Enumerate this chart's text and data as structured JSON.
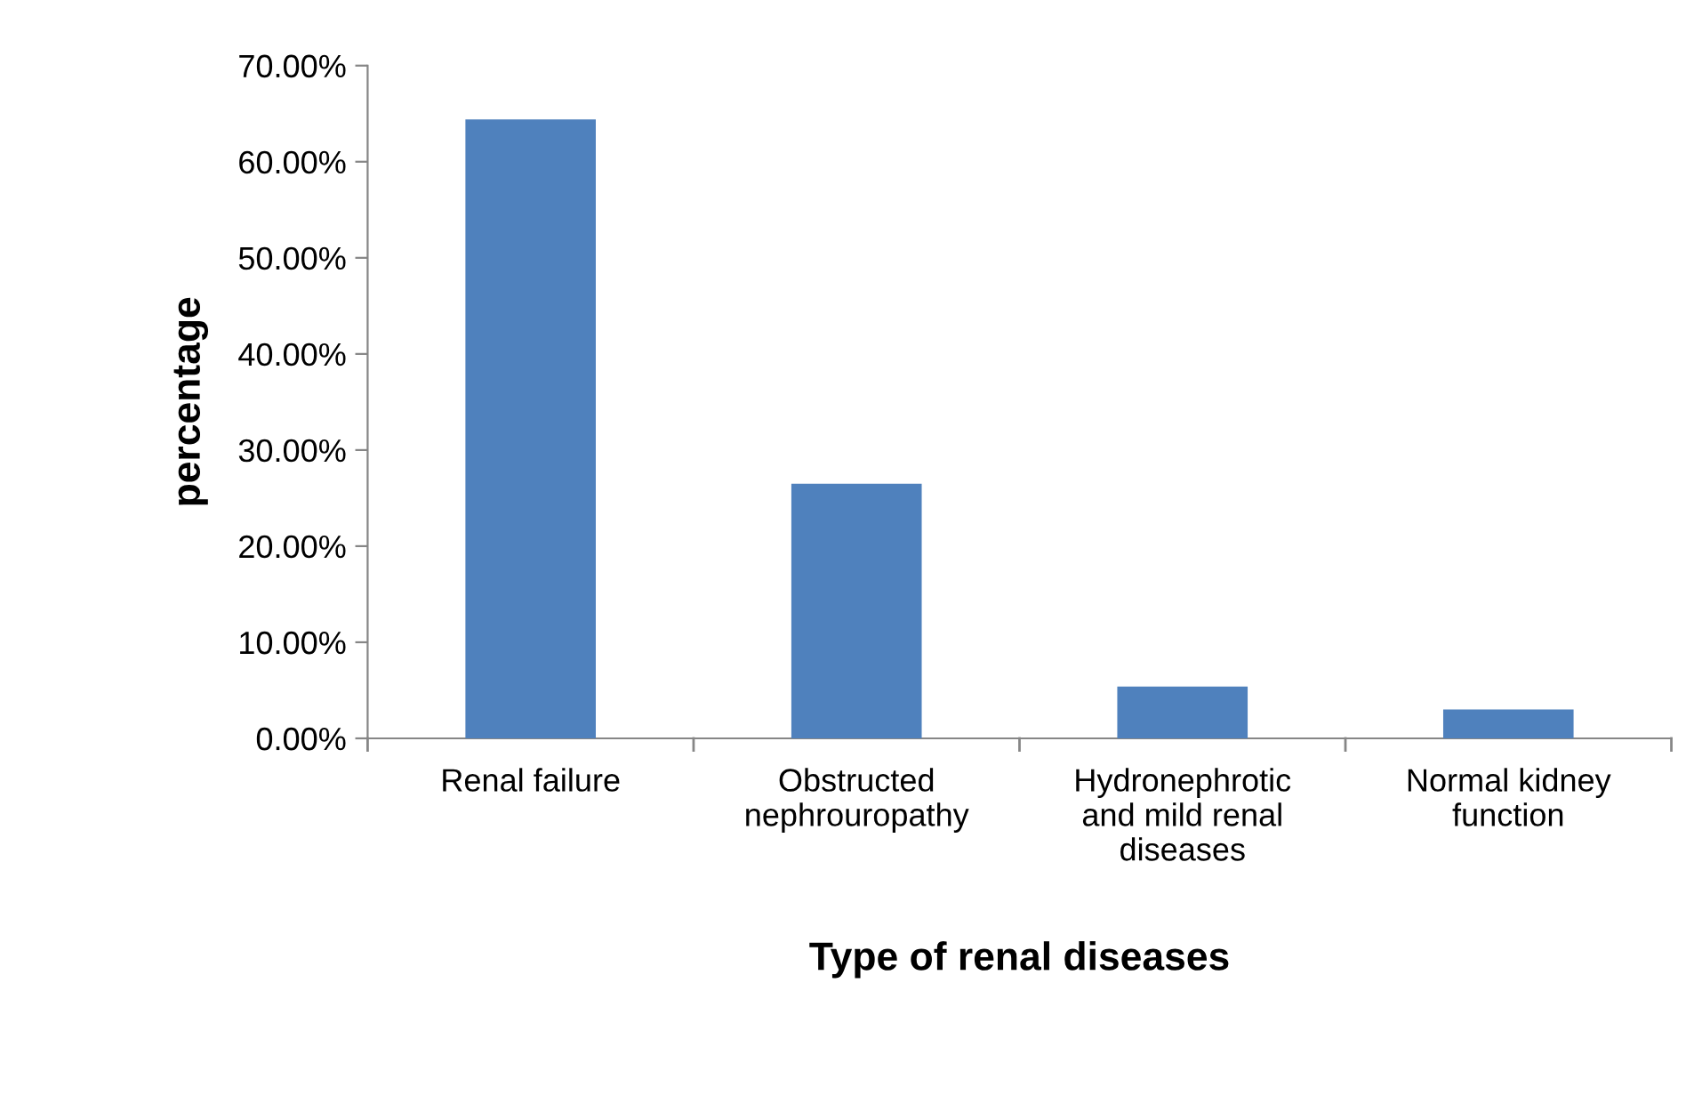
{
  "chart_data": {
    "type": "bar",
    "xlabel": "Type of renal diseases",
    "ylabel": "percentage",
    "categories": [
      "Renal failure",
      "Obstructed\nnephrouropathy",
      "Hydronephrotic\nand mild renal\ndiseases",
      "Normal kidney\nfunction"
    ],
    "values": [
      64.4,
      26.5,
      5.4,
      3.0
    ],
    "color": "#4f81bd",
    "ylim": [
      0,
      70
    ],
    "yticks": [
      {
        "value": 0,
        "label": "0.00%"
      },
      {
        "value": 10,
        "label": "10.00%"
      },
      {
        "value": 20,
        "label": "20.00%"
      },
      {
        "value": 30,
        "label": "30.00%"
      },
      {
        "value": 40,
        "label": "40.00%"
      },
      {
        "value": 50,
        "label": "50.00%"
      },
      {
        "value": 60,
        "label": "60.00%"
      },
      {
        "value": 70,
        "label": "70.00%"
      }
    ],
    "grid": false
  }
}
